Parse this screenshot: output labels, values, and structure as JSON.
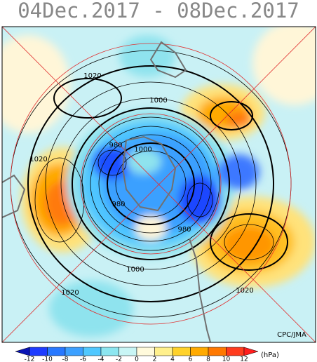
{
  "title": "04Dec.2017 - 08Dec.2017",
  "contour_labels": [
    "1020",
    "1000",
    "980",
    "1000",
    "1020",
    "980",
    "980",
    "1000",
    "1020",
    "1020"
  ],
  "credit": "CPC/JMA",
  "colorbar": {
    "ticks": [
      -12,
      -10,
      -8,
      -6,
      -4,
      -2,
      0,
      2,
      4,
      6,
      8,
      10,
      12
    ],
    "unit": "(hPa)"
  }
}
